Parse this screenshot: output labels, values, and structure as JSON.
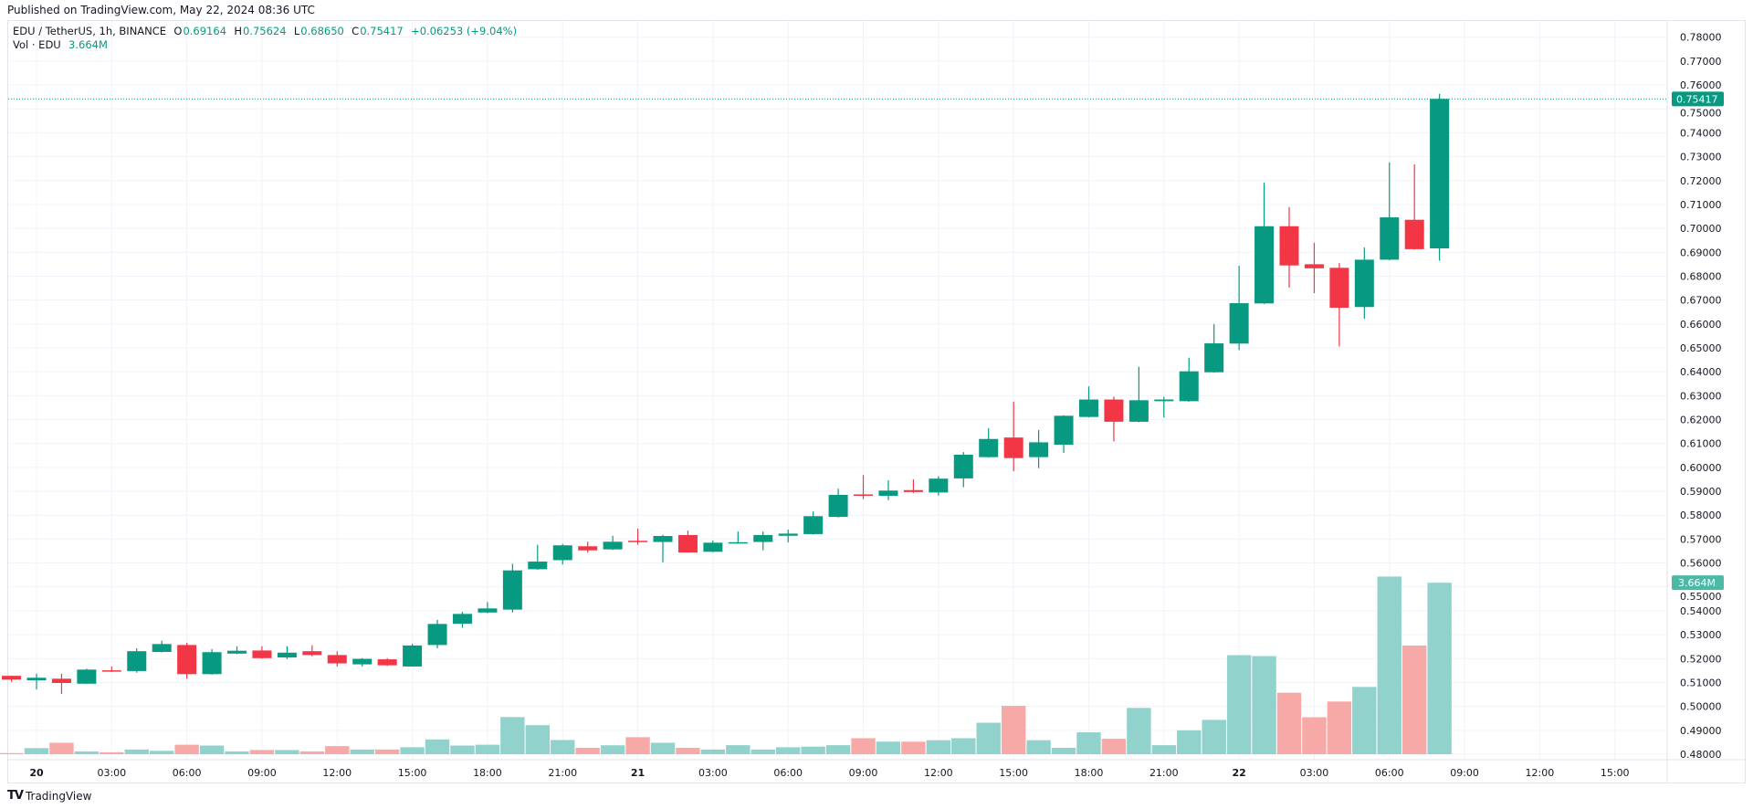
{
  "header": {
    "published": "Published on TradingView.com, May 22, 2024 08:36 UTC"
  },
  "legend": {
    "symbol": "EDU / TetherUS, 1h, BINANCE",
    "o_label": "O",
    "o": "0.69164",
    "h_label": "H",
    "h": "0.75624",
    "l_label": "L",
    "l": "0.68650",
    "c_label": "C",
    "c": "0.75417",
    "change": "+0.06253 (+9.04%)",
    "vol_label": "Vol · EDU",
    "vol": "3.664M"
  },
  "footer": {
    "logo_text": "TradingView",
    "logo_mark": "TV"
  },
  "colors": {
    "up": "#089981",
    "down": "#F23645",
    "vol_up": "#92D2CC",
    "vol_down": "#F7A9A7",
    "grid": "#F0F3FA",
    "text": "#131722"
  },
  "chart_data": {
    "type": "candlestick",
    "title": "EDU / TetherUS, 1h, BINANCE",
    "ylim": [
      0.475,
      0.785
    ],
    "grid": true,
    "last_price_label": "0.75417",
    "last_volume_label": "3.664M",
    "price_axis": {
      "values": [
        0.78,
        0.77,
        0.76,
        0.75,
        0.74,
        0.73,
        0.72,
        0.71,
        0.7,
        0.69,
        0.68,
        0.67,
        0.66,
        0.65,
        0.64,
        0.63,
        0.62,
        0.61,
        0.6,
        0.59,
        0.58,
        0.57,
        0.56,
        0.55,
        0.54,
        0.53,
        0.52,
        0.51,
        0.5,
        0.49,
        0.48
      ],
      "labels": [
        "0.78000",
        "0.77000",
        "0.76000",
        "0.75000",
        "0.74000",
        "0.73000",
        "0.72000",
        "0.71000",
        "0.70000",
        "0.69000",
        "0.68000",
        "0.67000",
        "0.66000",
        "0.65000",
        "0.64000",
        "0.63000",
        "0.62000",
        "0.61000",
        "0.60000",
        "0.59000",
        "0.58000",
        "0.57000",
        "0.56000",
        "0.55000",
        "0.54000",
        "0.53000",
        "0.52000",
        "0.51000",
        "0.50000",
        "0.49000",
        "0.48000"
      ]
    },
    "time_axis": [
      {
        "label": "20",
        "time": "2024-05-20T00:00"
      },
      {
        "label": "03:00",
        "time": "2024-05-20T03:00"
      },
      {
        "label": "06:00",
        "time": "2024-05-20T06:00"
      },
      {
        "label": "09:00",
        "time": "2024-05-20T09:00"
      },
      {
        "label": "12:00",
        "time": "2024-05-20T12:00"
      },
      {
        "label": "15:00",
        "time": "2024-05-20T15:00"
      },
      {
        "label": "18:00",
        "time": "2024-05-20T18:00"
      },
      {
        "label": "21:00",
        "time": "2024-05-20T21:00"
      },
      {
        "label": "21",
        "time": "2024-05-21T00:00"
      },
      {
        "label": "03:00",
        "time": "2024-05-21T03:00"
      },
      {
        "label": "06:00",
        "time": "2024-05-21T06:00"
      },
      {
        "label": "09:00",
        "time": "2024-05-21T09:00"
      },
      {
        "label": "12:00",
        "time": "2024-05-21T12:00"
      },
      {
        "label": "15:00",
        "time": "2024-05-21T15:00"
      },
      {
        "label": "18:00",
        "time": "2024-05-21T18:00"
      },
      {
        "label": "21:00",
        "time": "2024-05-21T21:00"
      },
      {
        "label": "22",
        "time": "2024-05-22T00:00"
      },
      {
        "label": "03:00",
        "time": "2024-05-22T03:00"
      },
      {
        "label": "06:00",
        "time": "2024-05-22T06:00"
      },
      {
        "label": "09:00",
        "time": "2024-05-22T09:00"
      },
      {
        "label": "12:00",
        "time": "2024-05-22T12:00"
      },
      {
        "label": "15:00",
        "time": "2024-05-22T15:00"
      }
    ],
    "columns": [
      "time",
      "open",
      "high",
      "low",
      "close",
      "volume_millions"
    ],
    "candles": [
      [
        "2024-05-19T23:00",
        0.5128,
        0.5128,
        0.5103,
        0.5112,
        0.024
      ],
      [
        "2024-05-20T00:00",
        0.5109,
        0.5137,
        0.5071,
        0.512,
        0.131
      ],
      [
        "2024-05-20T01:00",
        0.5116,
        0.5137,
        0.5052,
        0.5098,
        0.245
      ],
      [
        "2024-05-20T02:00",
        0.5095,
        0.5158,
        0.5095,
        0.5154,
        0.06
      ],
      [
        "2024-05-20T03:00",
        0.5151,
        0.5167,
        0.5144,
        0.5146,
        0.042
      ],
      [
        "2024-05-20T04:00",
        0.5148,
        0.5243,
        0.5141,
        0.5231,
        0.101
      ],
      [
        "2024-05-20T05:00",
        0.5228,
        0.5275,
        0.5226,
        0.5261,
        0.072
      ],
      [
        "2024-05-20T06:00",
        0.5257,
        0.5266,
        0.5116,
        0.5135,
        0.203
      ],
      [
        "2024-05-20T07:00",
        0.5135,
        0.524,
        0.5133,
        0.5227,
        0.185
      ],
      [
        "2024-05-20T08:00",
        0.5221,
        0.5252,
        0.5219,
        0.5233,
        0.06
      ],
      [
        "2024-05-20T09:00",
        0.5234,
        0.5252,
        0.52,
        0.5202,
        0.09
      ],
      [
        "2024-05-20T10:00",
        0.5205,
        0.5252,
        0.5198,
        0.5225,
        0.09
      ],
      [
        "2024-05-20T11:00",
        0.5231,
        0.5256,
        0.521,
        0.5215,
        0.06
      ],
      [
        "2024-05-20T12:00",
        0.5215,
        0.5231,
        0.5167,
        0.518,
        0.173
      ],
      [
        "2024-05-20T13:00",
        0.5176,
        0.5202,
        0.5167,
        0.5199,
        0.101
      ],
      [
        "2024-05-20T14:00",
        0.5197,
        0.5202,
        0.517,
        0.5172,
        0.101
      ],
      [
        "2024-05-20T15:00",
        0.5167,
        0.5262,
        0.5167,
        0.5255,
        0.149
      ],
      [
        "2024-05-20T16:00",
        0.5257,
        0.5362,
        0.5243,
        0.5345,
        0.316
      ],
      [
        "2024-05-20T17:00",
        0.5346,
        0.5396,
        0.5329,
        0.5387,
        0.185
      ],
      [
        "2024-05-20T18:00",
        0.5393,
        0.5437,
        0.539,
        0.541,
        0.203
      ],
      [
        "2024-05-20T19:00",
        0.5405,
        0.5597,
        0.5393,
        0.5569,
        0.794
      ],
      [
        "2024-05-20T20:00",
        0.5574,
        0.5676,
        0.5572,
        0.5606,
        0.621
      ],
      [
        "2024-05-20T21:00",
        0.5612,
        0.568,
        0.5594,
        0.5674,
        0.304
      ],
      [
        "2024-05-20T22:00",
        0.567,
        0.5689,
        0.5643,
        0.5653,
        0.137
      ],
      [
        "2024-05-20T23:00",
        0.5657,
        0.5714,
        0.5655,
        0.5689,
        0.191
      ],
      [
        "2024-05-21T00:00",
        0.5693,
        0.5744,
        0.5676,
        0.5688,
        0.364
      ],
      [
        "2024-05-21T01:00",
        0.5688,
        0.5718,
        0.5603,
        0.5713,
        0.245
      ],
      [
        "2024-05-21T02:00",
        0.5717,
        0.5736,
        0.5644,
        0.5644,
        0.137
      ],
      [
        "2024-05-21T03:00",
        0.5647,
        0.5694,
        0.5645,
        0.5685,
        0.101
      ],
      [
        "2024-05-21T04:00",
        0.5683,
        0.5732,
        0.5681,
        0.5687,
        0.193
      ],
      [
        "2024-05-21T05:00",
        0.5688,
        0.5732,
        0.5653,
        0.5717,
        0.1
      ],
      [
        "2024-05-21T06:00",
        0.5714,
        0.574,
        0.5686,
        0.5723,
        0.149
      ],
      [
        "2024-05-21T07:00",
        0.5721,
        0.5816,
        0.5719,
        0.5796,
        0.162
      ],
      [
        "2024-05-21T08:00",
        0.5793,
        0.5911,
        0.579,
        0.5885,
        0.193
      ],
      [
        "2024-05-21T09:00",
        0.5887,
        0.5968,
        0.5867,
        0.5881,
        0.342
      ],
      [
        "2024-05-21T10:00",
        0.5881,
        0.5946,
        0.5863,
        0.5903,
        0.268
      ],
      [
        "2024-05-21T11:00",
        0.5905,
        0.595,
        0.5893,
        0.5897,
        0.268
      ],
      [
        "2024-05-21T12:00",
        0.5895,
        0.5963,
        0.5882,
        0.5953,
        0.299
      ],
      [
        "2024-05-21T13:00",
        0.5954,
        0.6064,
        0.5917,
        0.6053,
        0.342
      ],
      [
        "2024-05-21T14:00",
        0.6043,
        0.6164,
        0.6041,
        0.6119,
        0.672
      ],
      [
        "2024-05-21T15:00",
        0.6125,
        0.6275,
        0.5984,
        0.6039,
        1.033
      ],
      [
        "2024-05-21T16:00",
        0.6043,
        0.6156,
        0.5997,
        0.6105,
        0.299
      ],
      [
        "2024-05-21T17:00",
        0.6095,
        0.6218,
        0.6061,
        0.6216,
        0.137
      ],
      [
        "2024-05-21T18:00",
        0.6211,
        0.6339,
        0.6209,
        0.6284,
        0.467
      ],
      [
        "2024-05-21T19:00",
        0.6284,
        0.6296,
        0.6109,
        0.6191,
        0.33
      ],
      [
        "2024-05-21T20:00",
        0.6191,
        0.6421,
        0.6189,
        0.6281,
        0.989
      ],
      [
        "2024-05-21T21:00",
        0.6277,
        0.6296,
        0.6209,
        0.6284,
        0.193
      ],
      [
        "2024-05-21T22:00",
        0.6277,
        0.6459,
        0.6275,
        0.6402,
        0.51
      ],
      [
        "2024-05-21T23:00",
        0.6398,
        0.6599,
        0.6396,
        0.6519,
        0.734
      ],
      [
        "2024-05-22T00:00",
        0.6518,
        0.6844,
        0.6491,
        0.6687,
        2.116
      ],
      [
        "2024-05-22T01:00",
        0.6686,
        0.7191,
        0.6684,
        0.7009,
        2.097
      ],
      [
        "2024-05-22T02:00",
        0.7009,
        0.7089,
        0.6752,
        0.6845,
        1.313
      ],
      [
        "2024-05-22T03:00",
        0.685,
        0.694,
        0.6729,
        0.6833,
        0.79
      ],
      [
        "2024-05-22T04:00",
        0.6835,
        0.6855,
        0.6506,
        0.6668,
        1.126
      ],
      [
        "2024-05-22T05:00",
        0.6671,
        0.692,
        0.6622,
        0.6869,
        1.438
      ],
      [
        "2024-05-22T06:00",
        0.6869,
        0.7276,
        0.6867,
        0.7046,
        3.796
      ],
      [
        "2024-05-22T07:00",
        0.7036,
        0.7268,
        0.6911,
        0.6913,
        2.321
      ],
      [
        "2024-05-22T08:00",
        0.69164,
        0.75624,
        0.6865,
        0.75417,
        3.664
      ]
    ]
  }
}
